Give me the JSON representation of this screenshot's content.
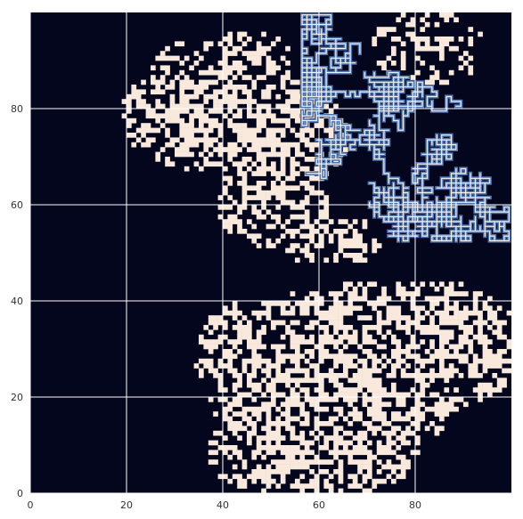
{
  "chart_data": {
    "type": "heatmap",
    "title": "",
    "xlabel": "",
    "ylabel": "",
    "xlim": [
      0,
      100
    ],
    "ylim": [
      0,
      100
    ],
    "x_ticks": [
      0,
      20,
      40,
      60,
      80
    ],
    "y_ticks": [
      0,
      20,
      40,
      60,
      80
    ],
    "x_tick_labels": [
      "0",
      "20",
      "40",
      "60",
      "80"
    ],
    "y_tick_labels": [
      "0",
      "20",
      "40",
      "60",
      "80"
    ],
    "grid": true,
    "grid_shape": [
      100,
      100
    ],
    "colors": {
      "background": "#04061e",
      "cluster": "#f9e8dc",
      "path": "#4c72b0",
      "grid": "#ffffff",
      "tick_text": "#333333"
    },
    "cluster_seed": 20231,
    "path_seed": 881
  }
}
